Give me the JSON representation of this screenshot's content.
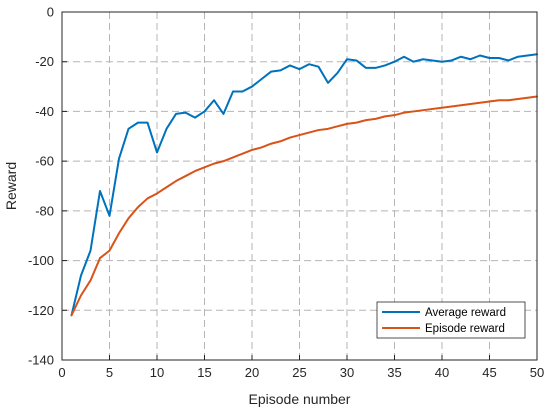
{
  "chart_data": {
    "type": "line",
    "title": "",
    "xlabel": "Episode number",
    "ylabel": "Reward",
    "xlim": [
      0,
      50
    ],
    "ylim": [
      -140,
      0
    ],
    "xticks": [
      0,
      5,
      10,
      15,
      20,
      25,
      30,
      35,
      40,
      45,
      50
    ],
    "yticks": [
      0,
      -20,
      -40,
      -60,
      -80,
      -100,
      -120,
      -140
    ],
    "xtick_labels": [
      "0",
      "5",
      "10",
      "15",
      "20",
      "25",
      "30",
      "35",
      "40",
      "45",
      "50"
    ],
    "ytick_labels": [
      "0",
      "-20",
      "-40",
      "-60",
      "-80",
      "-100",
      "-120",
      "-140"
    ],
    "grid": true,
    "grid_style": "dashed",
    "legend_position": "bottom-right",
    "x": [
      1,
      2,
      3,
      4,
      5,
      6,
      7,
      8,
      9,
      10,
      11,
      12,
      13,
      14,
      15,
      16,
      17,
      18,
      19,
      20,
      21,
      22,
      23,
      24,
      25,
      26,
      27,
      28,
      29,
      30,
      31,
      32,
      33,
      34,
      35,
      36,
      37,
      38,
      39,
      40,
      41,
      42,
      43,
      44,
      45,
      46,
      47,
      48,
      49,
      50
    ],
    "series": [
      {
        "name": "Average reward",
        "color": "#0072BD",
        "values": [
          -122,
          -106,
          -96,
          -72,
          -82,
          -59,
          -47,
          -44.5,
          -44.5,
          -56.5,
          -47,
          -41,
          -40.5,
          -42.5,
          -40,
          -35.5,
          -41,
          -32,
          -32,
          -30,
          -27,
          -24,
          -23.5,
          -21.5,
          -23,
          -21,
          -22,
          -28.5,
          -24.5,
          -19,
          -19.5,
          -22.5,
          -22.5,
          -21.5,
          -20,
          -18,
          -20,
          -19,
          -19.5,
          -20,
          -19.5,
          -18,
          -19,
          -17.5,
          -18.5,
          -18.5,
          -19.5,
          -18,
          -17.5,
          -17
        ]
      },
      {
        "name": "Episode reward",
        "color": "#D95319",
        "values": [
          -122,
          -114,
          -108,
          -99,
          -96,
          -89,
          -83,
          -78.5,
          -75,
          -73,
          -70.5,
          -68,
          -66,
          -64,
          -62.5,
          -61,
          -60,
          -58.5,
          -57,
          -55.5,
          -54.5,
          -53,
          -52,
          -50.5,
          -49.5,
          -48.5,
          -47.5,
          -47,
          -46,
          -45,
          -44.5,
          -43.5,
          -43,
          -42,
          -41.5,
          -40.5,
          -40,
          -39.5,
          -39,
          -38.5,
          -38,
          -37.5,
          -37,
          -36.5,
          -36,
          -35.5,
          -35.5,
          -35,
          -34.5,
          -34
        ]
      }
    ]
  }
}
